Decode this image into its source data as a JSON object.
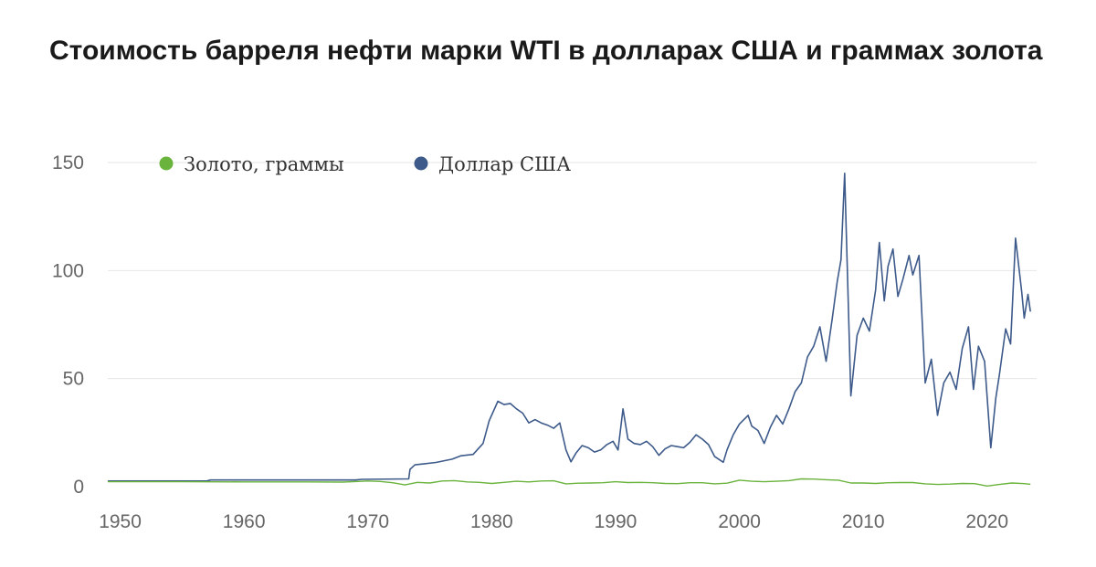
{
  "chart_data": {
    "type": "line",
    "title": "Стоимость барреля нефти марки WTI в долларах США и граммах золота",
    "xlabel": "",
    "ylabel": "",
    "xlim": [
      1949,
      2024
    ],
    "ylim": [
      0,
      155
    ],
    "x_ticks": [
      1950,
      1960,
      1970,
      1980,
      1990,
      2000,
      2010,
      2020
    ],
    "x_tick_labels": [
      "1950",
      "1960",
      "1970",
      "1980",
      "1990",
      "2000",
      "2010",
      "2020"
    ],
    "y_ticks": [
      0,
      50,
      100,
      150
    ],
    "y_tick_labels": [
      "0",
      "50",
      "100",
      "150"
    ],
    "grid": "horizontal",
    "legend_position": "top-left",
    "series": [
      {
        "name": "Золото, граммы",
        "color": "#6ab33c",
        "points": [
          [
            1949,
            2.3
          ],
          [
            1955,
            2.3
          ],
          [
            1960,
            2.2
          ],
          [
            1965,
            2.2
          ],
          [
            1968,
            2.1
          ],
          [
            1970,
            2.6
          ],
          [
            1971,
            2.4
          ],
          [
            1972,
            1.8
          ],
          [
            1973,
            0.8
          ],
          [
            1974,
            2.0
          ],
          [
            1975,
            1.7
          ],
          [
            1976,
            2.6
          ],
          [
            1977,
            2.8
          ],
          [
            1978,
            2.2
          ],
          [
            1979,
            2.0
          ],
          [
            1980,
            1.5
          ],
          [
            1981,
            2.0
          ],
          [
            1982,
            2.5
          ],
          [
            1983,
            2.2
          ],
          [
            1984,
            2.6
          ],
          [
            1985,
            2.7
          ],
          [
            1986,
            1.3
          ],
          [
            1987,
            1.6
          ],
          [
            1988,
            1.7
          ],
          [
            1989,
            1.8
          ],
          [
            1990,
            2.3
          ],
          [
            1991,
            1.9
          ],
          [
            1992,
            2.0
          ],
          [
            1993,
            1.8
          ],
          [
            1994,
            1.5
          ],
          [
            1995,
            1.4
          ],
          [
            1996,
            1.8
          ],
          [
            1997,
            1.8
          ],
          [
            1998,
            1.3
          ],
          [
            1999,
            1.6
          ],
          [
            2000,
            3.0
          ],
          [
            2001,
            2.5
          ],
          [
            2002,
            2.3
          ],
          [
            2003,
            2.5
          ],
          [
            2004,
            2.8
          ],
          [
            2005,
            3.6
          ],
          [
            2006,
            3.5
          ],
          [
            2007,
            3.2
          ],
          [
            2008,
            3.0
          ],
          [
            2009,
            1.7
          ],
          [
            2010,
            1.7
          ],
          [
            2011,
            1.5
          ],
          [
            2012,
            1.8
          ],
          [
            2013,
            1.9
          ],
          [
            2014,
            1.9
          ],
          [
            2015,
            1.3
          ],
          [
            2016,
            1.0
          ],
          [
            2017,
            1.2
          ],
          [
            2018,
            1.5
          ],
          [
            2019,
            1.4
          ],
          [
            2020,
            0.3
          ],
          [
            2021,
            1.0
          ],
          [
            2022,
            1.7
          ],
          [
            2023,
            1.4
          ],
          [
            2023.5,
            1.1
          ]
        ]
      },
      {
        "name": "Доллар США",
        "color": "#3d5a8a",
        "points": [
          [
            1949,
            2.6
          ],
          [
            1957,
            2.6
          ],
          [
            1957.3,
            3.1
          ],
          [
            1969,
            3.1
          ],
          [
            1969.5,
            3.4
          ],
          [
            1973.3,
            3.6
          ],
          [
            1973.4,
            8.0
          ],
          [
            1973.8,
            10.1
          ],
          [
            1974.5,
            10.5
          ],
          [
            1975.5,
            11.2
          ],
          [
            1976.8,
            12.7
          ],
          [
            1977.5,
            14.3
          ],
          [
            1978.5,
            14.9
          ],
          [
            1979.3,
            20.0
          ],
          [
            1979.8,
            30.5
          ],
          [
            1980.5,
            39.5
          ],
          [
            1981.0,
            38.0
          ],
          [
            1981.5,
            38.5
          ],
          [
            1982.0,
            36.0
          ],
          [
            1982.5,
            34.0
          ],
          [
            1983.0,
            29.5
          ],
          [
            1983.5,
            31.0
          ],
          [
            1984.0,
            29.5
          ],
          [
            1984.5,
            28.5
          ],
          [
            1985.0,
            27.0
          ],
          [
            1985.5,
            29.5
          ],
          [
            1986.0,
            17.0
          ],
          [
            1986.4,
            11.5
          ],
          [
            1986.8,
            15.5
          ],
          [
            1987.3,
            19.0
          ],
          [
            1987.8,
            18.0
          ],
          [
            1988.3,
            16.0
          ],
          [
            1988.8,
            17.0
          ],
          [
            1989.3,
            19.5
          ],
          [
            1989.8,
            21.0
          ],
          [
            1990.2,
            17.0
          ],
          [
            1990.6,
            36.0
          ],
          [
            1991.0,
            22.0
          ],
          [
            1991.5,
            20.0
          ],
          [
            1992.0,
            19.5
          ],
          [
            1992.5,
            21.0
          ],
          [
            1993.0,
            18.5
          ],
          [
            1993.5,
            14.5
          ],
          [
            1994.0,
            17.5
          ],
          [
            1994.5,
            19.0
          ],
          [
            1995.0,
            18.5
          ],
          [
            1995.5,
            18.0
          ],
          [
            1996.0,
            20.5
          ],
          [
            1996.5,
            24.0
          ],
          [
            1997.0,
            22.0
          ],
          [
            1997.5,
            19.5
          ],
          [
            1998.0,
            14.0
          ],
          [
            1998.7,
            11.3
          ],
          [
            1999.0,
            17.0
          ],
          [
            1999.5,
            24.0
          ],
          [
            2000.0,
            29.0
          ],
          [
            2000.7,
            33.0
          ],
          [
            2001.0,
            28.0
          ],
          [
            2001.5,
            26.0
          ],
          [
            2002.0,
            20.0
          ],
          [
            2002.5,
            27.5
          ],
          [
            2003.0,
            33.0
          ],
          [
            2003.5,
            29.0
          ],
          [
            2004.0,
            36.0
          ],
          [
            2004.5,
            44.0
          ],
          [
            2005.0,
            48.0
          ],
          [
            2005.5,
            60.0
          ],
          [
            2006.0,
            65.0
          ],
          [
            2006.5,
            74.0
          ],
          [
            2007.0,
            58.0
          ],
          [
            2007.5,
            78.0
          ],
          [
            2007.9,
            95.0
          ],
          [
            2008.2,
            105.0
          ],
          [
            2008.5,
            145.0
          ],
          [
            2009.0,
            42.0
          ],
          [
            2009.5,
            70.0
          ],
          [
            2010.0,
            78.0
          ],
          [
            2010.5,
            72.0
          ],
          [
            2011.0,
            91.0
          ],
          [
            2011.3,
            113.0
          ],
          [
            2011.7,
            86.0
          ],
          [
            2012.0,
            102.0
          ],
          [
            2012.4,
            110.0
          ],
          [
            2012.8,
            88.0
          ],
          [
            2013.2,
            96.0
          ],
          [
            2013.7,
            107.0
          ],
          [
            2014.0,
            98.0
          ],
          [
            2014.5,
            107.0
          ],
          [
            2015.0,
            48.0
          ],
          [
            2015.5,
            59.0
          ],
          [
            2016.0,
            33.0
          ],
          [
            2016.5,
            48.0
          ],
          [
            2017.0,
            53.0
          ],
          [
            2017.5,
            45.0
          ],
          [
            2018.0,
            64.0
          ],
          [
            2018.5,
            74.0
          ],
          [
            2018.9,
            45.0
          ],
          [
            2019.3,
            65.0
          ],
          [
            2019.8,
            58.0
          ],
          [
            2020.3,
            18.0
          ],
          [
            2020.7,
            41.0
          ],
          [
            2021.0,
            52.0
          ],
          [
            2021.5,
            73.0
          ],
          [
            2021.9,
            66.0
          ],
          [
            2022.3,
            115.0
          ],
          [
            2022.8,
            90.0
          ],
          [
            2023.0,
            78.0
          ],
          [
            2023.3,
            89.0
          ],
          [
            2023.5,
            81.0
          ]
        ]
      }
    ]
  }
}
